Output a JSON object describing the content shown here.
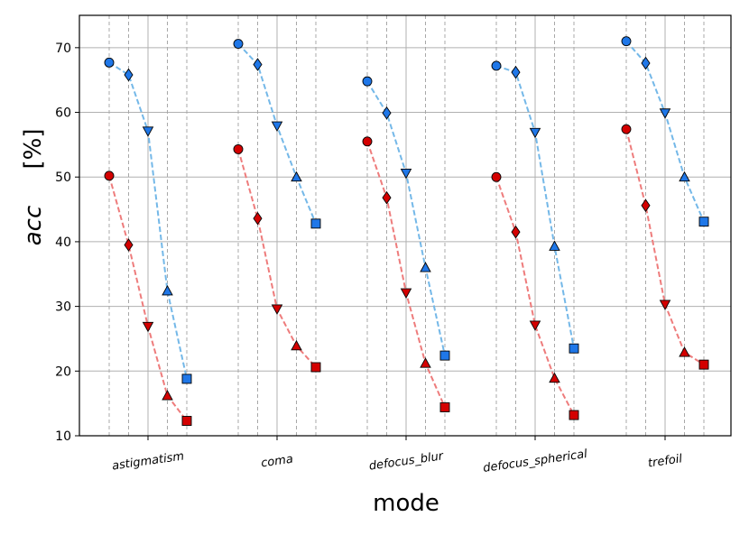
{
  "chart_data": {
    "type": "scatter",
    "xlabel": "mode",
    "ylabel_var": "acc",
    "ylabel_unit": "[%]",
    "ylim": [
      10,
      75
    ],
    "yticks": [
      10,
      20,
      30,
      40,
      50,
      60,
      70
    ],
    "grid": true,
    "categories": [
      "astigmatism",
      "coma",
      "defocus_blur",
      "defocus_spherical",
      "trefoil"
    ],
    "marker_order": [
      "circle",
      "diamond",
      "triangle-down",
      "triangle-up",
      "square"
    ],
    "series": [
      {
        "color": "#1f77e8",
        "line_color": "#74b8e8",
        "values": [
          [
            67.7,
            65.8,
            57.1,
            32.4,
            18.8
          ],
          [
            70.6,
            67.4,
            57.9,
            50.0,
            42.8
          ],
          [
            64.8,
            59.9,
            50.6,
            36.0,
            22.4
          ],
          [
            67.2,
            66.2,
            56.9,
            39.3,
            23.5
          ],
          [
            71.0,
            67.6,
            59.9,
            50.0,
            43.1
          ]
        ]
      },
      {
        "color": "#d40000",
        "line_color": "#ee7c7c",
        "values": [
          [
            50.2,
            39.5,
            26.9,
            16.2,
            12.3
          ],
          [
            54.3,
            43.6,
            29.6,
            23.9,
            20.6
          ],
          [
            55.5,
            46.8,
            32.1,
            21.2,
            14.4
          ],
          [
            50.0,
            41.5,
            27.1,
            18.9,
            13.2
          ],
          [
            57.4,
            45.6,
            30.3,
            22.9,
            21.0
          ]
        ]
      }
    ]
  }
}
